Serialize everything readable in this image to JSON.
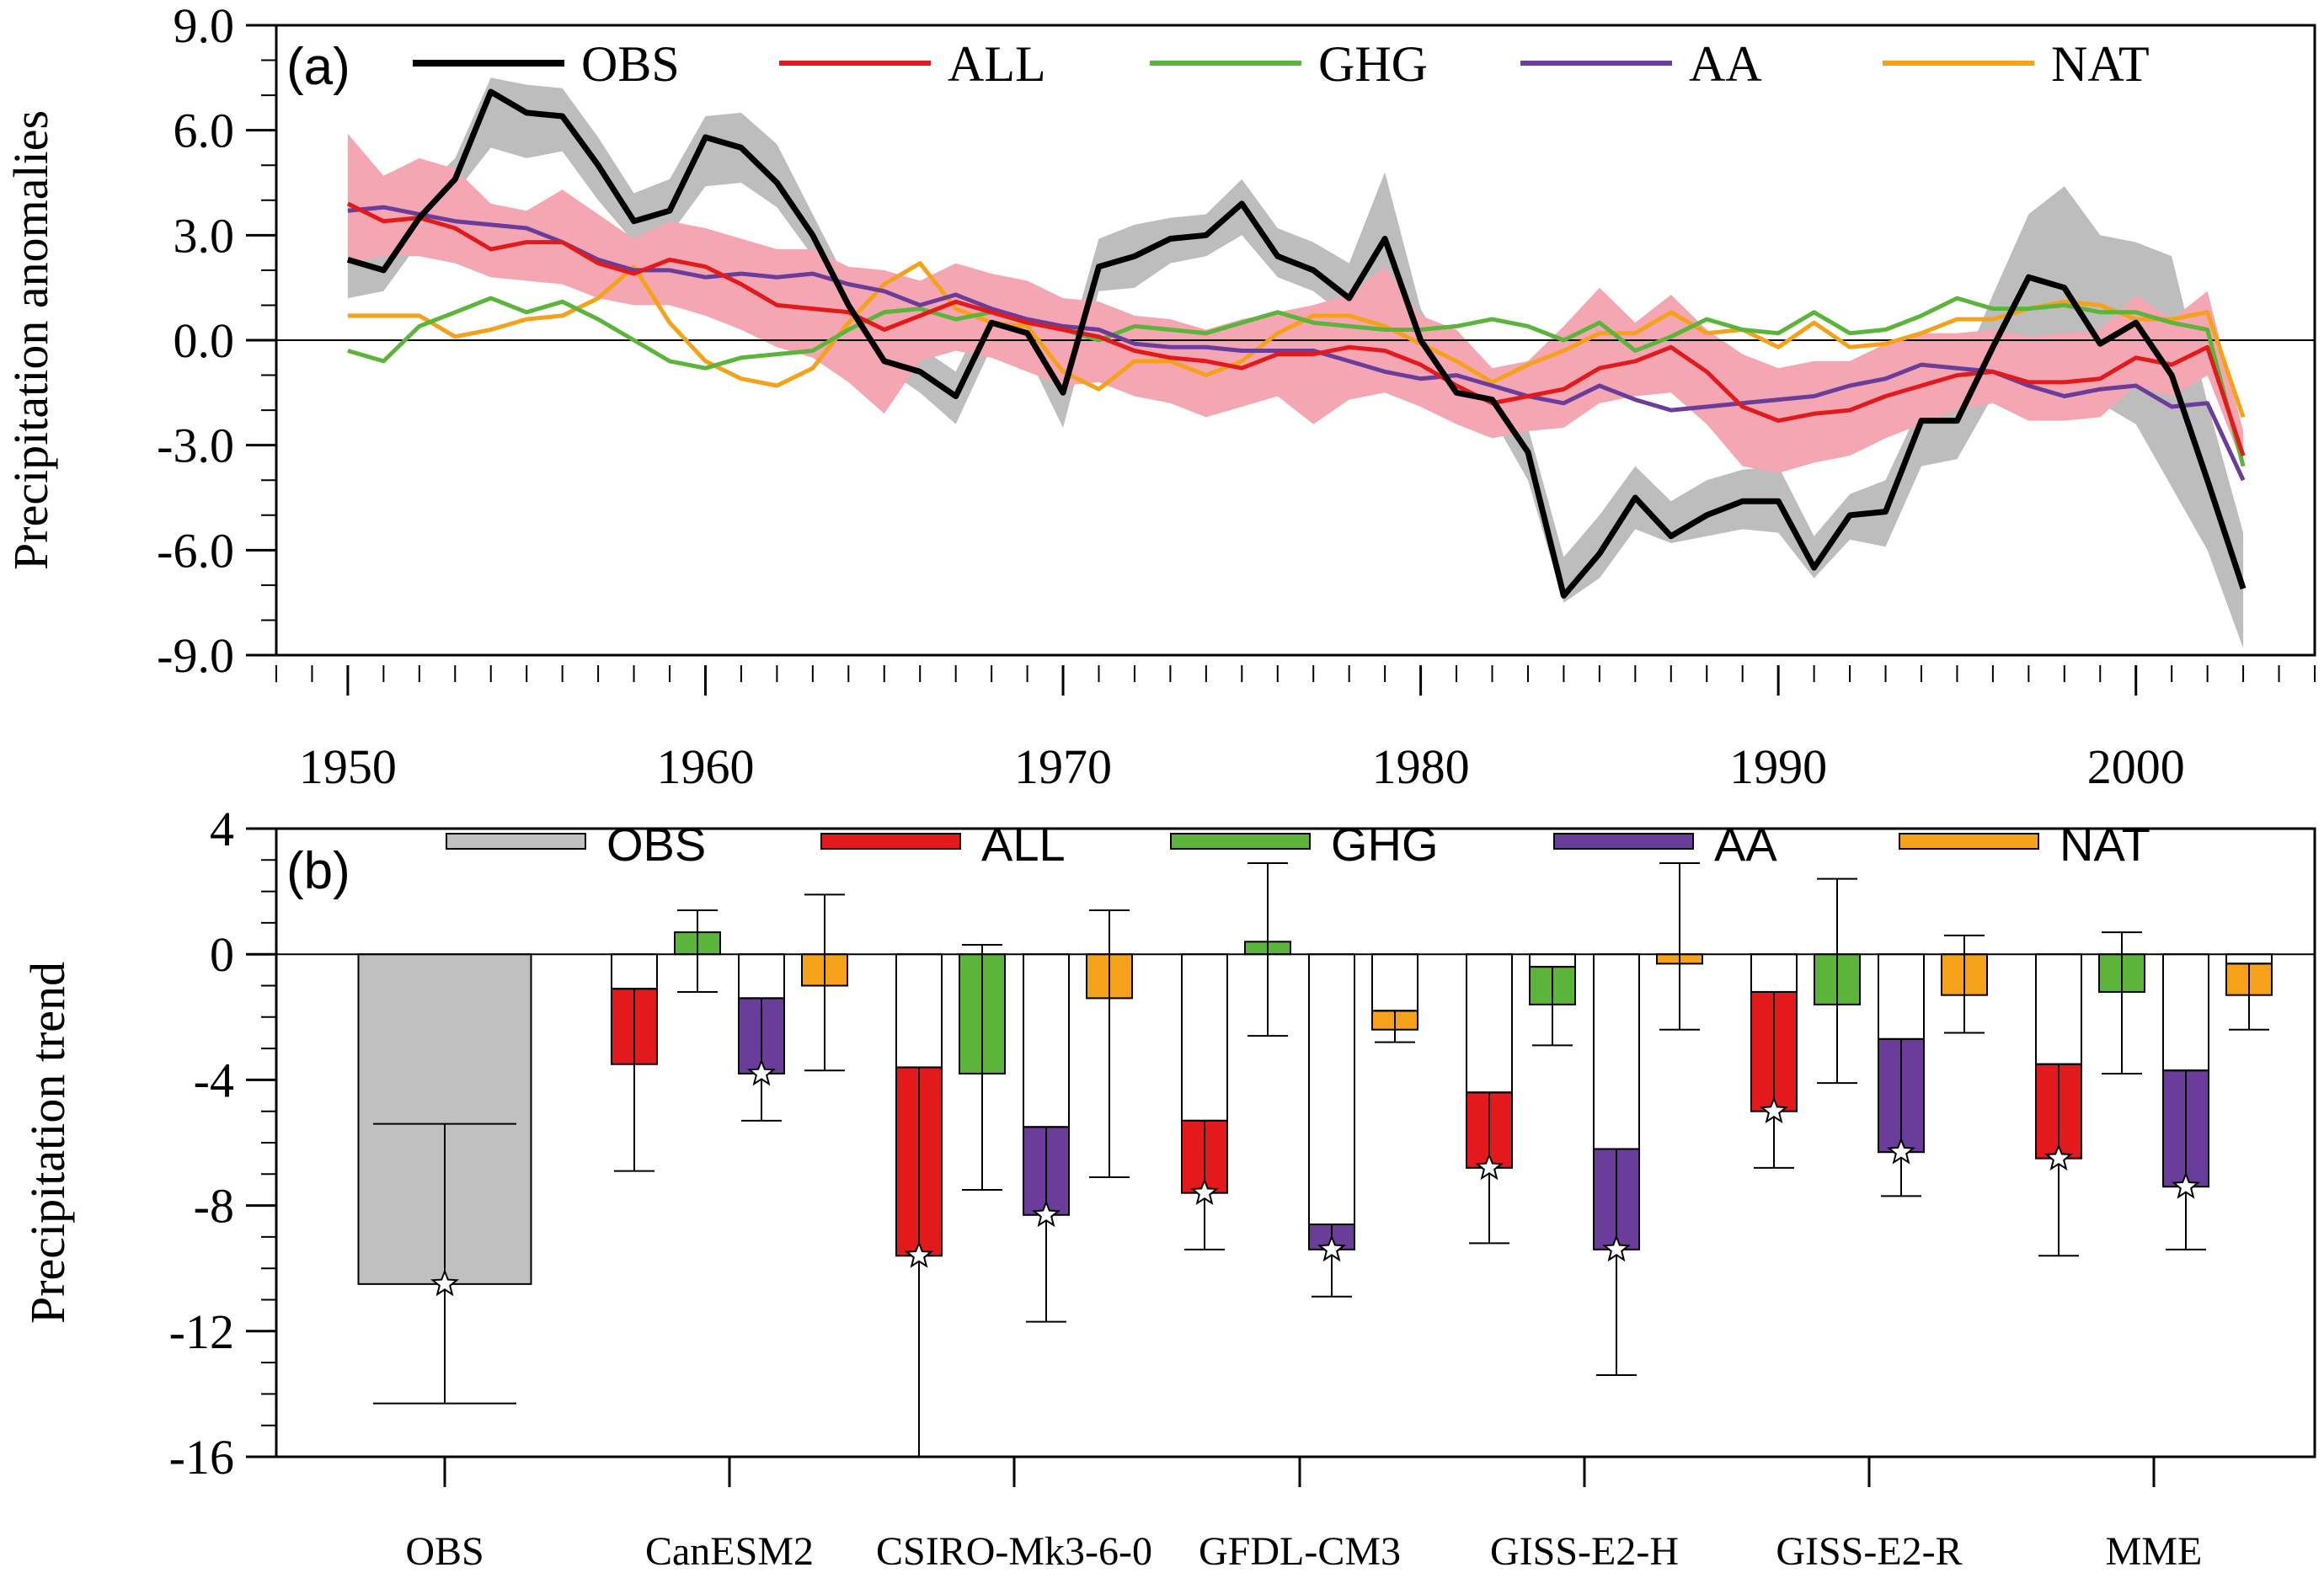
{
  "colors": {
    "OBS": "#000000",
    "ALL": "#e31a1c",
    "GHG": "#5ab53a",
    "AA": "#6a3d9a",
    "NAT": "#f5a21a",
    "obs_band": "#bdbdbd",
    "all_band": "#f4a6b2",
    "obs_bar": "#c0c0c0"
  },
  "chart_data": [
    {
      "type": "line",
      "panel_label": "(a)",
      "ylabel": "Precipitation anomalies",
      "xlabel": "",
      "xlim": [
        1948,
        2005
      ],
      "ylim": [
        -9,
        9
      ],
      "yticks": [
        "9.0",
        "6.0",
        "3.0",
        "0.0",
        "-3.0",
        "-6.0",
        "-9.0"
      ],
      "xticks": [
        "1950",
        "1960",
        "1970",
        "1980",
        "1990",
        "2000"
      ],
      "x": [
        1950,
        1951,
        1952,
        1953,
        1954,
        1955,
        1956,
        1957,
        1958,
        1959,
        1960,
        1961,
        1962,
        1963,
        1964,
        1965,
        1966,
        1967,
        1968,
        1969,
        1970,
        1971,
        1972,
        1973,
        1974,
        1975,
        1976,
        1977,
        1978,
        1979,
        1980,
        1981,
        1982,
        1983,
        1984,
        1985,
        1986,
        1987,
        1988,
        1989,
        1990,
        1991,
        1992,
        1993,
        1994,
        1995,
        1996,
        1997,
        1998,
        1999,
        2000,
        2001,
        2002,
        2003
      ],
      "series": [
        {
          "name": "OBS",
          "values": [
            2.3,
            2.0,
            3.5,
            4.6,
            7.1,
            6.5,
            6.4,
            5.0,
            3.4,
            3.7,
            5.8,
            5.5,
            4.5,
            3.0,
            1.0,
            -0.6,
            -0.9,
            -1.6,
            0.5,
            0.2,
            -1.5,
            2.1,
            2.4,
            2.9,
            3.0,
            3.9,
            2.4,
            2.0,
            1.2,
            2.9,
            0.0,
            -1.5,
            -1.7,
            -3.2,
            -7.3,
            -6.1,
            -4.5,
            -5.6,
            -5.0,
            -4.6,
            -4.6,
            -6.5,
            -5.0,
            -4.9,
            -2.3,
            -2.3,
            -0.2,
            1.8,
            1.5,
            -0.1,
            0.5,
            -1.0,
            -4.0,
            -7.1
          ]
        },
        {
          "name": "ALL",
          "values": [
            3.9,
            3.4,
            3.5,
            3.2,
            2.6,
            2.8,
            2.8,
            2.2,
            1.9,
            2.3,
            2.1,
            1.6,
            1.0,
            0.9,
            0.8,
            0.3,
            0.7,
            1.1,
            0.8,
            0.5,
            0.3,
            0.1,
            -0.3,
            -0.5,
            -0.6,
            -0.8,
            -0.4,
            -0.4,
            -0.2,
            -0.3,
            -0.7,
            -1.3,
            -1.8,
            -1.6,
            -1.4,
            -0.8,
            -0.6,
            -0.2,
            -0.9,
            -1.9,
            -2.3,
            -2.1,
            -2.0,
            -1.6,
            -1.3,
            -1.0,
            -0.9,
            -1.2,
            -1.2,
            -1.1,
            -0.5,
            -0.7,
            -0.2,
            -3.3
          ]
        },
        {
          "name": "GHG",
          "values": [
            -0.3,
            -0.6,
            0.4,
            0.8,
            1.2,
            0.8,
            1.1,
            0.6,
            0.0,
            -0.6,
            -0.8,
            -0.5,
            -0.4,
            -0.3,
            0.3,
            0.8,
            0.9,
            0.6,
            0.8,
            0.6,
            0.3,
            0.0,
            0.4,
            0.3,
            0.2,
            0.5,
            0.8,
            0.5,
            0.4,
            0.3,
            0.3,
            0.4,
            0.6,
            0.4,
            0.0,
            0.5,
            -0.3,
            0.1,
            0.6,
            0.3,
            0.2,
            0.8,
            0.2,
            0.3,
            0.7,
            1.2,
            0.9,
            0.9,
            1.0,
            0.8,
            0.8,
            0.5,
            0.3,
            -3.6
          ]
        },
        {
          "name": "AA",
          "values": [
            3.7,
            3.8,
            3.6,
            3.4,
            3.3,
            3.2,
            2.8,
            2.3,
            2.0,
            2.0,
            1.8,
            1.9,
            1.8,
            1.9,
            1.6,
            1.4,
            1.0,
            1.3,
            0.9,
            0.6,
            0.4,
            0.3,
            -0.1,
            -0.2,
            -0.2,
            -0.3,
            -0.3,
            -0.3,
            -0.6,
            -0.9,
            -1.1,
            -1.0,
            -1.3,
            -1.6,
            -1.8,
            -1.3,
            -1.7,
            -2.0,
            -1.9,
            -1.8,
            -1.7,
            -1.6,
            -1.3,
            -1.1,
            -0.7,
            -0.8,
            -0.9,
            -1.3,
            -1.6,
            -1.4,
            -1.3,
            -1.9,
            -1.8,
            -4.0
          ]
        },
        {
          "name": "NAT",
          "values": [
            0.7,
            0.7,
            0.7,
            0.1,
            0.3,
            0.6,
            0.7,
            1.2,
            2.1,
            0.5,
            -0.6,
            -1.1,
            -1.3,
            -0.8,
            0.5,
            1.6,
            2.2,
            0.9,
            0.5,
            0.4,
            -0.9,
            -1.4,
            -0.6,
            -0.6,
            -1.0,
            -0.6,
            0.2,
            0.7,
            0.7,
            0.4,
            -0.1,
            -0.6,
            -1.2,
            -0.7,
            -0.3,
            0.2,
            0.2,
            0.8,
            0.2,
            0.3,
            -0.2,
            0.5,
            -0.2,
            -0.1,
            0.2,
            0.6,
            0.6,
            0.9,
            1.1,
            1.0,
            0.6,
            0.6,
            0.8,
            -2.2
          ]
        }
      ],
      "bands": [
        {
          "name": "OBS range",
          "lower": [
            1.2,
            1.4,
            2.8,
            4.2,
            5.5,
            5.2,
            5.4,
            4.0,
            2.8,
            3.0,
            4.4,
            4.5,
            3.8,
            2.4,
            0.6,
            -0.8,
            -1.5,
            -2.4,
            -0.2,
            -0.4,
            -2.5,
            1.4,
            1.5,
            2.2,
            2.4,
            3.0,
            1.8,
            1.4,
            0.6,
            1.6,
            -0.6,
            -2.0,
            -2.2,
            -4.0,
            -7.5,
            -6.8,
            -5.4,
            -5.8,
            -5.6,
            -5.4,
            -5.5,
            -6.8,
            -5.7,
            -5.9,
            -3.6,
            -3.4,
            -1.6,
            -0.2,
            -0.4,
            -1.8,
            -2.4,
            -4.2,
            -6.0,
            -8.8
          ],
          "upper": [
            3.0,
            2.8,
            4.2,
            5.2,
            7.5,
            7.3,
            7.2,
            5.8,
            4.2,
            4.6,
            6.4,
            6.5,
            5.6,
            3.6,
            1.6,
            0.0,
            -0.2,
            -0.9,
            1.2,
            0.9,
            -0.7,
            2.9,
            3.3,
            3.5,
            3.6,
            4.6,
            3.2,
            2.8,
            2.2,
            4.8,
            0.9,
            -0.9,
            -1.2,
            -2.5,
            -6.2,
            -5.0,
            -3.6,
            -4.6,
            -4.0,
            -3.7,
            -3.6,
            -5.6,
            -4.4,
            -4.0,
            -1.8,
            -1.2,
            1.3,
            3.6,
            4.4,
            3.0,
            2.8,
            2.4,
            -1.8,
            -5.5
          ]
        },
        {
          "name": "ALL range",
          "lower": [
            2.2,
            2.4,
            2.4,
            2.2,
            1.8,
            1.7,
            1.6,
            1.2,
            1.0,
            1.0,
            0.7,
            0.3,
            -0.2,
            -0.5,
            -1.2,
            -2.1,
            -0.6,
            -0.3,
            -0.5,
            -0.9,
            -1.3,
            -1.2,
            -1.6,
            -1.8,
            -2.2,
            -1.9,
            -1.6,
            -2.4,
            -1.7,
            -1.5,
            -1.9,
            -2.4,
            -2.8,
            -2.6,
            -2.5,
            -1.8,
            -1.6,
            -1.5,
            -2.4,
            -3.6,
            -3.8,
            -3.5,
            -3.3,
            -2.8,
            -2.4,
            -2.0,
            -1.8,
            -2.3,
            -2.3,
            -2.2,
            -1.3,
            -1.6,
            -1.0,
            -3.6
          ],
          "upper": [
            5.9,
            4.7,
            5.2,
            4.9,
            3.9,
            3.7,
            4.3,
            3.6,
            2.9,
            3.4,
            3.2,
            2.9,
            2.6,
            2.6,
            2.1,
            2.0,
            1.7,
            2.2,
            1.9,
            1.7,
            1.2,
            1.1,
            0.7,
            0.6,
            0.3,
            0.6,
            0.8,
            1.0,
            1.3,
            2.1,
            0.7,
            0.3,
            -0.8,
            -0.6,
            0.4,
            1.5,
            0.5,
            1.3,
            0.3,
            -0.4,
            -0.8,
            -0.6,
            -0.6,
            -0.1,
            0.2,
            0.2,
            0.3,
            0.1,
            0.2,
            0.3,
            1.3,
            0.6,
            1.4,
            -2.6
          ]
        }
      ],
      "legend": [
        "OBS",
        "ALL",
        "GHG",
        "AA",
        "NAT"
      ]
    },
    {
      "type": "bar",
      "panel_label": "(b)",
      "ylabel": "Precipitation trend",
      "ylim": [
        -16,
        4
      ],
      "yticks": [
        "4",
        "0",
        "-4",
        "-8",
        "-12",
        "-16"
      ],
      "categories": [
        "OBS",
        "CanESM2",
        "CSIRO-Mk3-6-0",
        "GFDL-CM3",
        "GISS-E2-H",
        "GISS-E2-R",
        "MME"
      ],
      "legend": [
        "OBS",
        "ALL",
        "GHG",
        "AA",
        "NAT"
      ],
      "bars": [
        {
          "category": "OBS",
          "series": "OBS",
          "value": -10.5,
          "err_low": -14.3,
          "err_high": -5.4,
          "inner": null,
          "star": true
        },
        {
          "category": "CanESM2",
          "series": "ALL",
          "value": -3.5,
          "err_low": -6.9,
          "err_high": -1.1,
          "inner": -1.1,
          "star": false
        },
        {
          "category": "CanESM2",
          "series": "GHG",
          "value": 0.7,
          "err_low": -1.2,
          "err_high": 1.4,
          "inner": null,
          "star": false
        },
        {
          "category": "CanESM2",
          "series": "AA",
          "value": -3.8,
          "err_low": -5.3,
          "err_high": -1.4,
          "inner": -1.4,
          "star": true
        },
        {
          "category": "CanESM2",
          "series": "NAT",
          "value": -1.0,
          "err_low": -3.7,
          "err_high": 1.9,
          "inner": null,
          "star": false
        },
        {
          "category": "CSIRO-Mk3-6-0",
          "series": "ALL",
          "value": -9.6,
          "err_low": -16.0,
          "err_high": -3.6,
          "inner": -3.6,
          "star": true
        },
        {
          "category": "CSIRO-Mk3-6-0",
          "series": "GHG",
          "value": -3.8,
          "err_low": -7.5,
          "err_high": 0.3,
          "inner": null,
          "star": false
        },
        {
          "category": "CSIRO-Mk3-6-0",
          "series": "AA",
          "value": -8.3,
          "err_low": -11.7,
          "err_high": -5.5,
          "inner": -5.5,
          "star": true
        },
        {
          "category": "CSIRO-Mk3-6-0",
          "series": "NAT",
          "value": -1.4,
          "err_low": -7.1,
          "err_high": 1.4,
          "inner": null,
          "star": false
        },
        {
          "category": "GFDL-CM3",
          "series": "ALL",
          "value": -7.6,
          "err_low": -9.4,
          "err_high": -5.3,
          "inner": -5.3,
          "star": true
        },
        {
          "category": "GFDL-CM3",
          "series": "GHG",
          "value": 0.4,
          "err_low": -2.6,
          "err_high": 2.9,
          "inner": null,
          "star": false
        },
        {
          "category": "GFDL-CM3",
          "series": "AA",
          "value": -9.4,
          "err_low": -10.9,
          "err_high": -8.6,
          "inner": -8.6,
          "star": true
        },
        {
          "category": "GFDL-CM3",
          "series": "NAT",
          "value": -2.4,
          "err_low": -2.8,
          "err_high": -1.8,
          "inner": -1.8,
          "star": false
        },
        {
          "category": "GISS-E2-H",
          "series": "ALL",
          "value": -6.8,
          "err_low": -9.2,
          "err_high": -4.4,
          "inner": -4.4,
          "star": true
        },
        {
          "category": "GISS-E2-H",
          "series": "GHG",
          "value": -1.6,
          "err_low": -2.9,
          "err_high": -0.4,
          "inner": -0.4,
          "star": false
        },
        {
          "category": "GISS-E2-H",
          "series": "AA",
          "value": -9.4,
          "err_low": -13.4,
          "err_high": -6.2,
          "inner": -6.2,
          "star": true
        },
        {
          "category": "GISS-E2-H",
          "series": "NAT",
          "value": -0.3,
          "err_low": -2.4,
          "err_high": 2.9,
          "inner": null,
          "star": false
        },
        {
          "category": "GISS-E2-R",
          "series": "ALL",
          "value": -5.0,
          "err_low": -6.8,
          "err_high": -1.2,
          "inner": -1.2,
          "star": true
        },
        {
          "category": "GISS-E2-R",
          "series": "GHG",
          "value": -1.6,
          "err_low": -4.1,
          "err_high": 2.4,
          "inner": null,
          "star": false
        },
        {
          "category": "GISS-E2-R",
          "series": "AA",
          "value": -6.3,
          "err_low": -7.7,
          "err_high": -2.7,
          "inner": -2.7,
          "star": true
        },
        {
          "category": "GISS-E2-R",
          "series": "NAT",
          "value": -1.3,
          "err_low": -2.5,
          "err_high": 0.6,
          "inner": null,
          "star": false
        },
        {
          "category": "MME",
          "series": "ALL",
          "value": -6.5,
          "err_low": -9.6,
          "err_high": -3.5,
          "inner": -3.5,
          "star": true
        },
        {
          "category": "MME",
          "series": "GHG",
          "value": -1.2,
          "err_low": -3.8,
          "err_high": 0.7,
          "inner": null,
          "star": false
        },
        {
          "category": "MME",
          "series": "AA",
          "value": -7.4,
          "err_low": -9.4,
          "err_high": -3.7,
          "inner": -3.7,
          "star": true
        },
        {
          "category": "MME",
          "series": "NAT",
          "value": -1.3,
          "err_low": -2.4,
          "err_high": -0.3,
          "inner": -0.3,
          "star": false
        }
      ]
    }
  ]
}
